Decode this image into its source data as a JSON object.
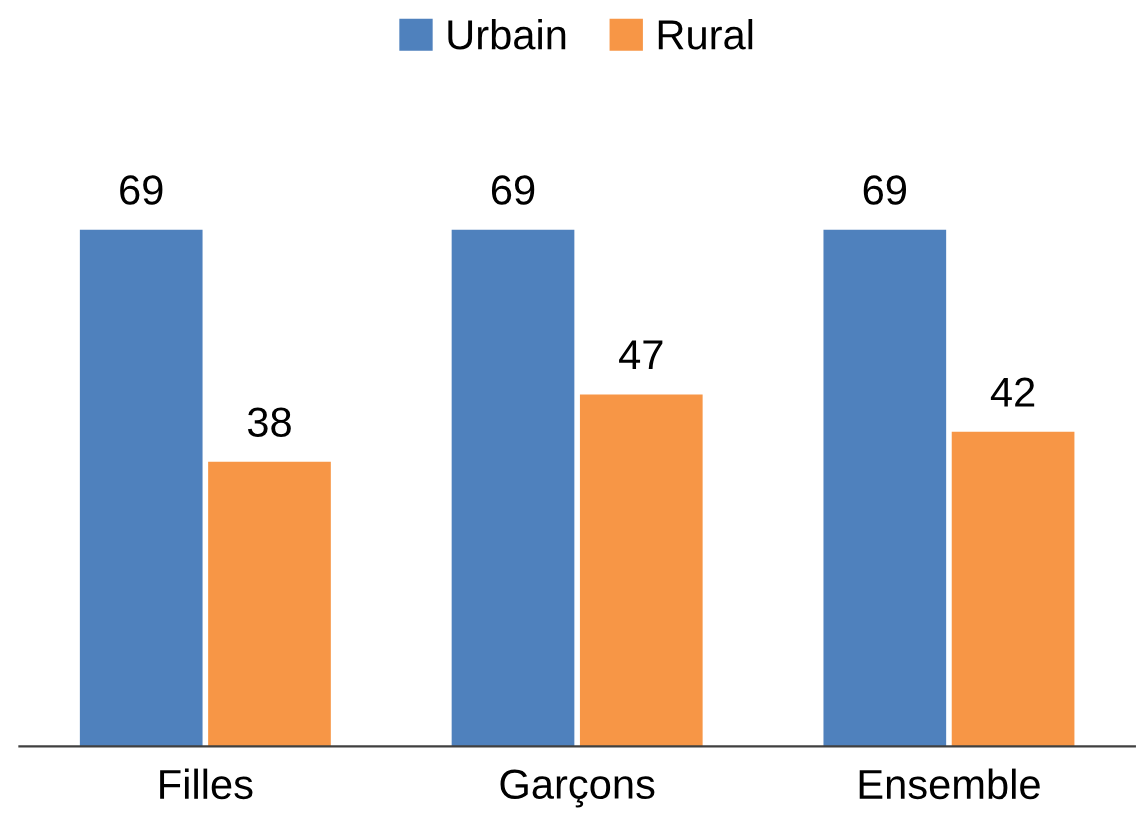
{
  "chart_data": {
    "type": "bar",
    "categories": [
      "Filles",
      "Garçons",
      "Ensemble"
    ],
    "series": [
      {
        "name": "Urbain",
        "color": "#4f81bd",
        "values": [
          69,
          69,
          69
        ]
      },
      {
        "name": "Rural",
        "color": "#f79646",
        "values": [
          38,
          47,
          42
        ]
      }
    ],
    "data_labels": true,
    "legend": "top",
    "tick_labels": "x"
  }
}
